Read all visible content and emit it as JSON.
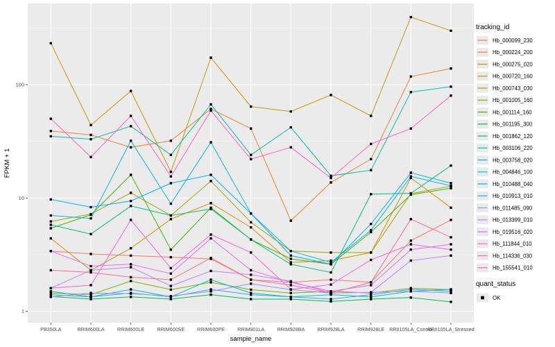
{
  "figure": {
    "background": "#FFFFFF",
    "panel_background": "#EBEBEB",
    "grid_color": "#FFFFFF",
    "tick_label_color": "#4D4D4D",
    "text_color": "#000000"
  },
  "chart_data": {
    "type": "line",
    "title": "",
    "xlabel": "sample_name",
    "ylabel": "FPKM + 1",
    "yscale": "log10",
    "yticks": [
      1,
      10,
      100
    ],
    "ytick_labels": [
      "1",
      "10",
      "100"
    ],
    "minor_grid_values": [
      3.162,
      31.62,
      316.2
    ],
    "ylim": [
      0.79,
      520
    ],
    "grid": true,
    "legend_position": "right",
    "legend_title": "tracking_id",
    "point_legend": {
      "title": "quant_status",
      "label": "OK",
      "marker": "black-square"
    },
    "categories": [
      "PB350LA",
      "RRIM600LA",
      "RRIM600LE",
      "RRIM600SE",
      "RRIM600PE",
      "RRIM901LA",
      "RRIM928BA",
      "RRIM928LA",
      "RRIM928LE",
      "RRII105LA_Control",
      "RRII105LA_Stressed"
    ],
    "series": [
      {
        "name": "Hb_000099_230",
        "color": "#F8766D",
        "values": [
          3.4,
          3.2,
          3.1,
          3.0,
          2.9,
          1.9,
          1.8,
          1.9,
          1.8,
          4.2,
          6.4
        ]
      },
      {
        "name": "Hb_000224_200",
        "color": "#EA8331",
        "values": [
          39,
          36,
          28,
          32,
          61,
          41,
          6.3,
          13.7,
          22,
          118,
          139
        ]
      },
      {
        "name": "Hb_000275_020",
        "color": "#D89000",
        "values": [
          4.4,
          2.3,
          3.6,
          6.5,
          9.0,
          5.5,
          2.7,
          2.8,
          3.3,
          15,
          8.2
        ]
      },
      {
        "name": "Hb_000720_160",
        "color": "#C09B00",
        "values": [
          232,
          44,
          88,
          17,
          173,
          64,
          58,
          81,
          53,
          395,
          299
        ]
      },
      {
        "name": "Hb_000743_030",
        "color": "#A3A500",
        "values": [
          6.2,
          7.2,
          11.1,
          7.0,
          14.1,
          6.1,
          3.4,
          3.3,
          3.3,
          10.9,
          12.7
        ]
      },
      {
        "name": "Hb_001005_160",
        "color": "#7CAE00",
        "values": [
          1.45,
          1.4,
          1.85,
          1.55,
          1.8,
          1.55,
          1.45,
          1.5,
          1.45,
          1.6,
          1.55
        ]
      },
      {
        "name": "Hb_001114_160",
        "color": "#39B600",
        "values": [
          5.4,
          7.1,
          16,
          3.5,
          8.2,
          4.3,
          2.9,
          2.6,
          5.0,
          10.7,
          12.2
        ]
      },
      {
        "name": "Hb_001195_300",
        "color": "#00BB4E",
        "values": [
          1.35,
          1.28,
          1.34,
          1.28,
          1.4,
          1.28,
          1.28,
          1.22,
          1.28,
          1.32,
          1.21
        ]
      },
      {
        "name": "Hb_001862_120",
        "color": "#00BF7D",
        "values": [
          5.8,
          4.8,
          8.5,
          7.0,
          8.0,
          4.3,
          2.6,
          2.2,
          10.8,
          11.0,
          19.3
        ]
      },
      {
        "name": "Hb_003106_220",
        "color": "#00C1A3",
        "values": [
          35,
          33,
          43,
          24,
          67,
          24,
          42,
          15.7,
          17.6,
          86,
          96
        ]
      },
      {
        "name": "Hb_003758_020",
        "color": "#00BFC4",
        "values": [
          1.5,
          1.34,
          1.56,
          1.34,
          1.9,
          1.45,
          1.34,
          1.4,
          1.34,
          1.5,
          1.56
        ]
      },
      {
        "name": "Hb_004846_100",
        "color": "#00BAE0",
        "values": [
          7.0,
          6.6,
          32,
          8.9,
          31,
          7.3,
          3.4,
          2.7,
          5.2,
          15.5,
          12.8
        ]
      },
      {
        "name": "Hb_010488_040",
        "color": "#00B0F6",
        "values": [
          9.7,
          8.3,
          9.4,
          13.5,
          16,
          7.3,
          3.1,
          2.6,
          5.9,
          16.7,
          13.5
        ]
      },
      {
        "name": "Hb_010913_010",
        "color": "#35A2FF",
        "values": [
          1.4,
          1.34,
          1.45,
          1.34,
          1.56,
          1.4,
          1.34,
          1.28,
          1.4,
          1.56,
          1.5
        ]
      },
      {
        "name": "Hb_011485_090",
        "color": "#9590FF",
        "values": [
          1.34,
          1.45,
          1.43,
          1.36,
          1.5,
          1.75,
          1.55,
          1.45,
          1.47,
          1.5,
          1.45
        ]
      },
      {
        "name": "Hb_013399_010",
        "color": "#C77CFF",
        "values": [
          1.6,
          2.3,
          2.45,
          1.67,
          2.27,
          2.1,
          1.84,
          1.45,
          1.47,
          2.8,
          3.1
        ]
      },
      {
        "name": "Hb_019516_020",
        "color": "#E76BF3",
        "values": [
          3.4,
          2.5,
          2.6,
          2.15,
          4.4,
          2.3,
          1.8,
          1.5,
          1.7,
          3.5,
          3.9
        ]
      },
      {
        "name": "Hb_111844_010",
        "color": "#FA62DB",
        "values": [
          1.6,
          1.7,
          6.4,
          2.4,
          4.75,
          3.3,
          1.56,
          1.72,
          2.84,
          3.9,
          3.5
        ]
      },
      {
        "name": "Hb_114336_030",
        "color": "#FF62BC",
        "values": [
          50,
          23,
          53,
          15.5,
          59,
          22,
          28,
          15,
          30,
          41,
          80
        ]
      },
      {
        "name": "Hb_155541_010",
        "color": "#FF6A98",
        "values": [
          2.3,
          2.2,
          2.0,
          1.9,
          2.95,
          1.9,
          1.7,
          1.45,
          1.8,
          6.5,
          4.5
        ]
      }
    ]
  }
}
